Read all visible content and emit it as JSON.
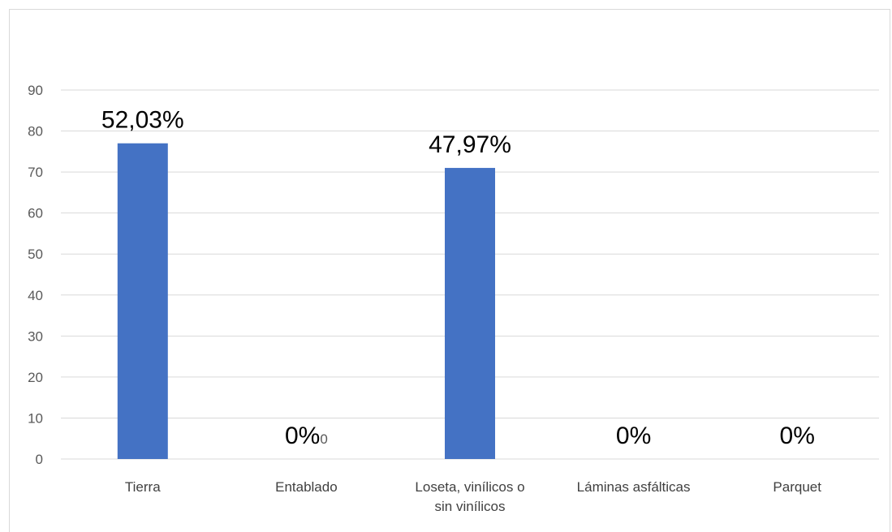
{
  "chart_data": {
    "type": "bar",
    "title": "",
    "xlabel": "",
    "ylabel": "",
    "ylim": [
      0,
      90
    ],
    "y_ticks": [
      0,
      10,
      20,
      30,
      40,
      50,
      60,
      70,
      80,
      90
    ],
    "grid": true,
    "legend": "none",
    "categories": [
      [
        "Tierra"
      ],
      [
        "Entablado"
      ],
      [
        "Loseta, vinílicos o",
        "sin vinílicos"
      ],
      [
        "Láminas asfálticas"
      ],
      [
        "Parquet"
      ]
    ],
    "values": [
      77,
      0,
      71,
      0,
      0
    ],
    "data_labels": [
      "52,03%",
      "0%",
      "47,97%",
      "0%",
      "0%"
    ],
    "value_labels": [
      "",
      "0",
      "",
      "",
      ""
    ],
    "bar_color": "#4472c4",
    "grid_color": "#d9d9d9"
  }
}
